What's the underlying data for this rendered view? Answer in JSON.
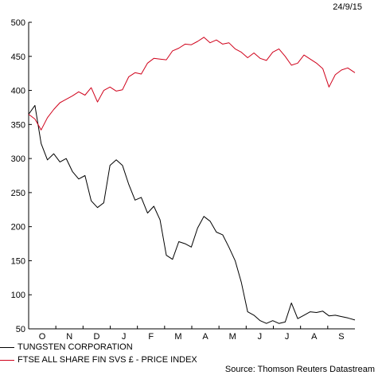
{
  "date_label": "24/9/15",
  "source": "Source: Thomson Reuters Datastream",
  "chart_data": {
    "type": "line",
    "title": "",
    "xlabel": "",
    "ylabel": "",
    "ylim": [
      50,
      500
    ],
    "y_ticks": [
      50,
      100,
      150,
      200,
      250,
      300,
      350,
      400,
      450,
      500
    ],
    "x_ticks": [
      "O",
      "N",
      "D",
      "J",
      "F",
      "M",
      "A",
      "M",
      "J",
      "J",
      "A",
      "S"
    ],
    "grid": false,
    "legend_position": "bottom-left",
    "x": [
      "2014-09-24",
      "2014-10-01",
      "2014-10-08",
      "2014-10-15",
      "2014-10-22",
      "2014-10-29",
      "2014-11-05",
      "2014-11-12",
      "2014-11-19",
      "2014-11-26",
      "2014-12-03",
      "2014-12-10",
      "2014-12-17",
      "2014-12-24",
      "2014-12-31",
      "2015-01-07",
      "2015-01-14",
      "2015-01-21",
      "2015-01-28",
      "2015-02-04",
      "2015-02-11",
      "2015-02-18",
      "2015-02-25",
      "2015-03-04",
      "2015-03-11",
      "2015-03-18",
      "2015-03-25",
      "2015-04-01",
      "2015-04-08",
      "2015-04-15",
      "2015-04-22",
      "2015-04-29",
      "2015-05-06",
      "2015-05-13",
      "2015-05-20",
      "2015-05-27",
      "2015-06-03",
      "2015-06-10",
      "2015-06-17",
      "2015-06-24",
      "2015-07-01",
      "2015-07-08",
      "2015-07-15",
      "2015-07-22",
      "2015-07-29",
      "2015-08-05",
      "2015-08-12",
      "2015-08-19",
      "2015-08-26",
      "2015-09-02",
      "2015-09-09",
      "2015-09-16",
      "2015-09-24"
    ],
    "series": [
      {
        "name": "TUNGSTEN CORPORATION",
        "color": "#000000",
        "values": [
          365,
          378,
          322,
          298,
          307,
          295,
          300,
          281,
          270,
          275,
          238,
          228,
          235,
          290,
          298,
          290,
          262,
          239,
          243,
          220,
          230,
          210,
          158,
          152,
          178,
          175,
          170,
          198,
          215,
          208,
          192,
          188,
          170,
          150,
          118,
          75,
          70,
          62,
          58,
          62,
          58,
          60,
          88,
          65,
          70,
          75,
          74,
          76,
          69,
          70,
          68,
          66,
          63
        ]
      },
      {
        "name": "FTSE ALL SHARE FIN SVS £ - PRICE INDEX",
        "color": "#d0021b",
        "values": [
          365,
          358,
          342,
          360,
          372,
          382,
          387,
          392,
          398,
          393,
          404,
          383,
          400,
          405,
          399,
          401,
          420,
          426,
          424,
          440,
          447,
          446,
          445,
          458,
          462,
          468,
          467,
          472,
          478,
          470,
          474,
          468,
          470,
          461,
          456,
          448,
          455,
          447,
          444,
          456,
          461,
          450,
          437,
          440,
          452,
          446,
          440,
          432,
          405,
          423,
          430,
          433,
          426
        ]
      }
    ]
  }
}
